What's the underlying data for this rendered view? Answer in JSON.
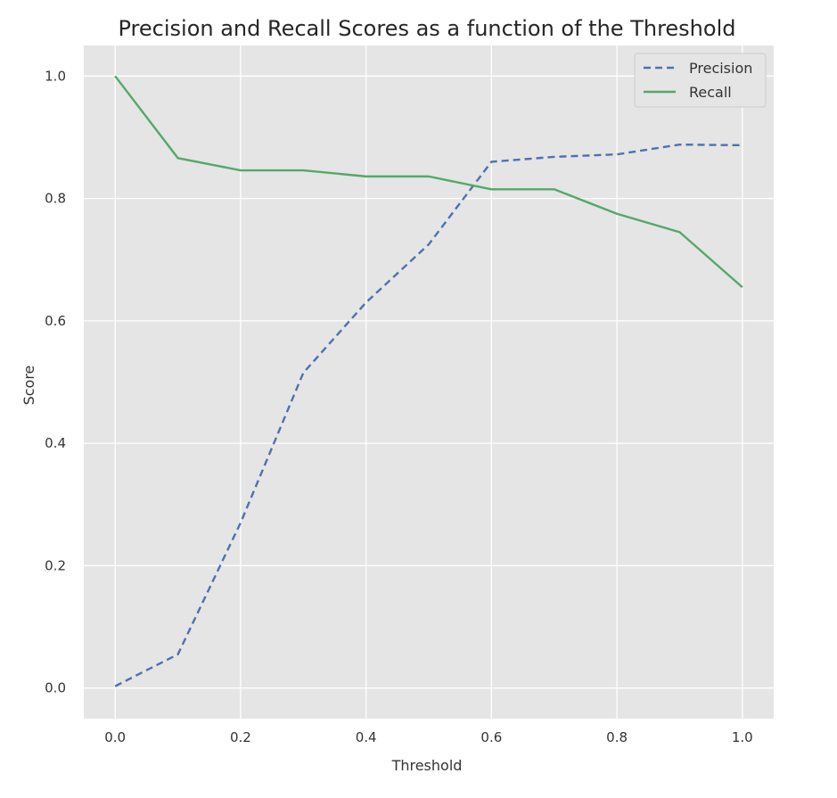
{
  "chart_data": {
    "type": "line",
    "title": "Precision and Recall Scores as a function of the Threshold",
    "xlabel": "Threshold",
    "ylabel": "Score",
    "x": [
      0.0,
      0.1,
      0.2,
      0.3,
      0.4,
      0.5,
      0.6,
      0.7,
      0.8,
      0.9,
      1.0
    ],
    "xlim": [
      -0.05,
      1.05
    ],
    "ylim": [
      -0.05,
      1.05
    ],
    "xticks": [
      "0.0",
      "0.2",
      "0.4",
      "0.6",
      "0.8",
      "1.0"
    ],
    "yticks": [
      "0.0",
      "0.2",
      "0.4",
      "0.6",
      "0.8",
      "1.0"
    ],
    "grid": true,
    "legend_position": "top-right",
    "background": "#e5e5e5",
    "series": [
      {
        "name": "Precision",
        "style": "dashed",
        "color": "#4c72b0",
        "values": [
          0.003,
          0.055,
          0.27,
          0.515,
          0.63,
          0.725,
          0.86,
          0.868,
          0.872,
          0.888,
          0.887
        ]
      },
      {
        "name": "Recall",
        "style": "solid",
        "color": "#55a868",
        "values": [
          1.0,
          0.866,
          0.846,
          0.846,
          0.836,
          0.836,
          0.815,
          0.815,
          0.775,
          0.745,
          0.655
        ]
      }
    ]
  }
}
